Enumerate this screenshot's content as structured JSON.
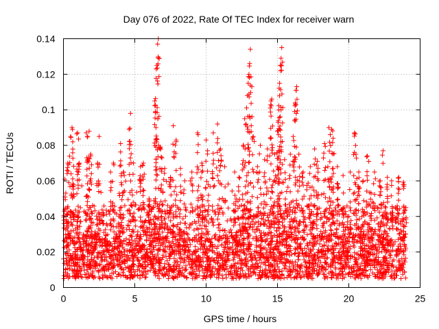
{
  "chart_data": {
    "type": "scatter",
    "title": "Day 076 of 2022, Rate Of TEC Index for receiver warn",
    "xlabel": "GPS time / hours",
    "ylabel": "ROTI / TECUs",
    "xlim": [
      0,
      25
    ],
    "ylim": [
      0,
      0.14
    ],
    "xticks": [
      0,
      5,
      10,
      15,
      20,
      25
    ],
    "yticks": [
      0,
      0.02,
      0.04,
      0.06,
      0.08,
      0.1,
      0.12,
      0.14
    ],
    "xtick_labels": [
      "0",
      "5",
      "10",
      "15",
      "20",
      "25"
    ],
    "ytick_labels": [
      "0",
      "0.02",
      "0.04",
      "0.06",
      "0.08",
      "0.1",
      "0.12",
      "0.14"
    ],
    "grid": true,
    "marker": "+",
    "color": "#ff0000",
    "series": [
      {
        "name": "ROTI",
        "points": [
          [
            0.1,
            0.061
          ],
          [
            0.25,
            0.066
          ],
          [
            0.3,
            0.07
          ],
          [
            0.5,
            0.085
          ],
          [
            0.6,
            0.09
          ],
          [
            0.65,
            0.082
          ],
          [
            1.0,
            0.087
          ],
          [
            1.1,
            0.07
          ],
          [
            1.6,
            0.087
          ],
          [
            1.7,
            0.085
          ],
          [
            1.8,
            0.088
          ],
          [
            1.9,
            0.075
          ],
          [
            2.5,
            0.085
          ],
          [
            2.4,
            0.07
          ],
          [
            3.3,
            0.065
          ],
          [
            3.5,
            0.07
          ],
          [
            4.0,
            0.081
          ],
          [
            4.2,
            0.065
          ],
          [
            4.6,
            0.089
          ],
          [
            4.7,
            0.098
          ],
          [
            4.9,
            0.07
          ],
          [
            5.4,
            0.068
          ],
          [
            5.6,
            0.07
          ],
          [
            6.0,
            0.05
          ],
          [
            6.4,
            0.105
          ],
          [
            6.45,
            0.099
          ],
          [
            6.5,
            0.123
          ],
          [
            6.55,
            0.125
          ],
          [
            6.6,
            0.137
          ],
          [
            6.65,
            0.14
          ],
          [
            6.8,
            0.079
          ],
          [
            6.9,
            0.073
          ],
          [
            7.1,
            0.067
          ],
          [
            7.5,
            0.062
          ],
          [
            7.7,
            0.091
          ],
          [
            7.9,
            0.083
          ],
          [
            8.2,
            0.067
          ],
          [
            8.5,
            0.06
          ],
          [
            9.0,
            0.065
          ],
          [
            9.4,
            0.087
          ],
          [
            9.7,
            0.07
          ],
          [
            10.0,
            0.083
          ],
          [
            10.1,
            0.077
          ],
          [
            10.5,
            0.087
          ],
          [
            10.8,
            0.092
          ],
          [
            11.0,
            0.078
          ],
          [
            11.3,
            0.068
          ],
          [
            12.0,
            0.065
          ],
          [
            12.3,
            0.062
          ],
          [
            12.6,
            0.08
          ],
          [
            12.7,
            0.095
          ],
          [
            12.8,
            0.092
          ],
          [
            12.9,
            0.108
          ],
          [
            13.0,
            0.12
          ],
          [
            13.05,
            0.126
          ],
          [
            13.1,
            0.134
          ],
          [
            13.2,
            0.113
          ],
          [
            13.3,
            0.085
          ],
          [
            13.6,
            0.068
          ],
          [
            13.8,
            0.08
          ],
          [
            14.1,
            0.072
          ],
          [
            14.3,
            0.078
          ],
          [
            14.5,
            0.101
          ],
          [
            14.55,
            0.105
          ],
          [
            14.6,
            0.106
          ],
          [
            14.8,
            0.075
          ],
          [
            15.0,
            0.088
          ],
          [
            15.05,
            0.093
          ],
          [
            15.1,
            0.1
          ],
          [
            15.15,
            0.115
          ],
          [
            15.2,
            0.125
          ],
          [
            15.25,
            0.129
          ],
          [
            15.3,
            0.135
          ],
          [
            15.5,
            0.072
          ],
          [
            15.9,
            0.075
          ],
          [
            16.1,
            0.085
          ],
          [
            16.2,
            0.099
          ],
          [
            16.25,
            0.104
          ],
          [
            16.3,
            0.111
          ],
          [
            16.35,
            0.113
          ],
          [
            16.5,
            0.075
          ],
          [
            16.8,
            0.065
          ],
          [
            17.3,
            0.068
          ],
          [
            17.6,
            0.078
          ],
          [
            17.8,
            0.071
          ],
          [
            18.3,
            0.081
          ],
          [
            18.6,
            0.09
          ],
          [
            18.7,
            0.086
          ],
          [
            18.8,
            0.089
          ],
          [
            18.9,
            0.084
          ],
          [
            19.2,
            0.068
          ],
          [
            19.6,
            0.063
          ],
          [
            20.1,
            0.065
          ],
          [
            20.4,
            0.087
          ],
          [
            20.5,
            0.075
          ],
          [
            20.7,
            0.065
          ],
          [
            21.0,
            0.06
          ],
          [
            21.3,
            0.074
          ],
          [
            21.4,
            0.071
          ],
          [
            21.8,
            0.065
          ],
          [
            22.2,
            0.06
          ],
          [
            22.4,
            0.077
          ],
          [
            22.7,
            0.062
          ],
          [
            23.0,
            0.06
          ],
          [
            23.5,
            0.062
          ],
          [
            23.8,
            0.058
          ],
          [
            24.0,
            0.045
          ]
        ],
        "dense_band": {
          "x_range": [
            0,
            24
          ],
          "typical_low": 0.005,
          "typical_high": 0.03,
          "occasional_high": 0.06,
          "description_values": "Dense cloud of ROTI values mostly between 0.005 and 0.03 TECUs across 0-24 h"
        }
      }
    ]
  }
}
